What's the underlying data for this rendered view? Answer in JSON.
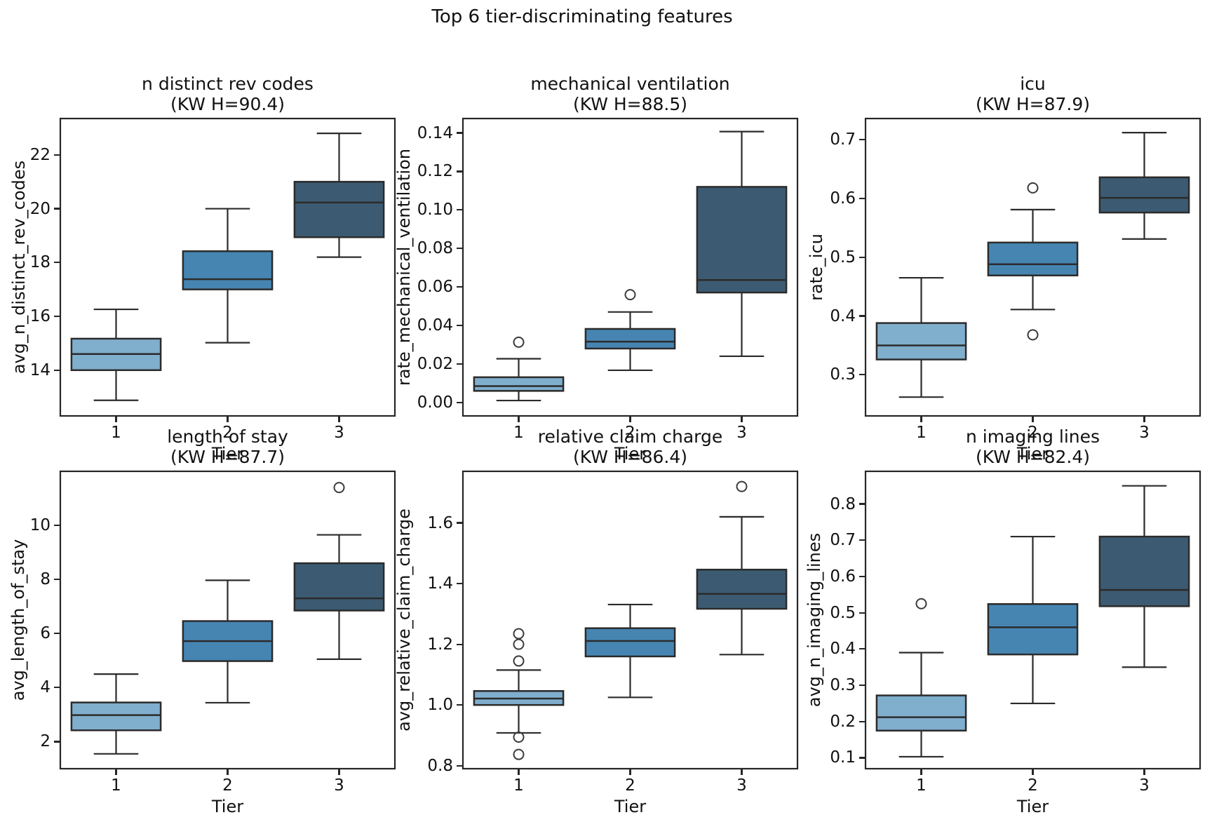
{
  "suptitle": "Top 6 tier-discriminating features",
  "palette": {
    "tier_fills": [
      "#80AECD",
      "#4685B2",
      "#3C5B72"
    ],
    "box_edge": "#2B2B2B",
    "spine": "#262626",
    "text": "#111111",
    "background": "#FFFFFF"
  },
  "axes_shared": {
    "xlabel": "Tier",
    "x_tick_labels": [
      "1",
      "2",
      "3"
    ]
  },
  "chart_data": [
    {
      "type": "box",
      "title": "n distinct rev codes",
      "subtitle": "(KW H=90.4)",
      "kw_h": 90.4,
      "ylabel": "avg_n_distinct_rev_codes",
      "xlabel": "Tier",
      "categories": [
        "1",
        "2",
        "3"
      ],
      "y_tick_values": [
        14,
        16,
        18,
        20,
        22
      ],
      "y_tick_labels": [
        "14",
        "16",
        "18",
        "20",
        "22"
      ],
      "ylim": [
        12.3,
        23.35
      ],
      "grid": false,
      "boxes": [
        {
          "category": "1",
          "whisker_low": 12.88,
          "q1": 14.0,
          "median": 14.6,
          "q3": 15.17,
          "whisker_high": 16.26,
          "outliers": []
        },
        {
          "category": "2",
          "whisker_low": 15.02,
          "q1": 17.0,
          "median": 17.38,
          "q3": 18.42,
          "whisker_high": 20.0,
          "outliers": []
        },
        {
          "category": "3",
          "whisker_low": 18.2,
          "q1": 18.94,
          "median": 20.23,
          "q3": 21.0,
          "whisker_high": 22.8,
          "outliers": []
        }
      ]
    },
    {
      "type": "box",
      "title": "mechanical ventilation",
      "subtitle": "(KW H=88.5)",
      "kw_h": 88.5,
      "ylabel": "rate_mechanical_ventilation",
      "xlabel": "Tier",
      "categories": [
        "1",
        "2",
        "3"
      ],
      "y_tick_values": [
        0.0,
        0.02,
        0.04,
        0.06,
        0.08,
        0.1,
        0.12,
        0.14
      ],
      "y_tick_labels": [
        "0.00",
        "0.02",
        "0.04",
        "0.06",
        "0.08",
        "0.10",
        "0.12",
        "0.14"
      ],
      "ylim": [
        -0.007,
        0.1475
      ],
      "grid": false,
      "boxes": [
        {
          "category": "1",
          "whisker_low": 0.001,
          "q1": 0.006,
          "median": 0.0085,
          "q3": 0.0131,
          "whisker_high": 0.0227,
          "outliers": [
            0.0313
          ]
        },
        {
          "category": "2",
          "whisker_low": 0.0167,
          "q1": 0.028,
          "median": 0.0316,
          "q3": 0.0382,
          "whisker_high": 0.047,
          "outliers": [
            0.056
          ]
        },
        {
          "category": "3",
          "whisker_low": 0.024,
          "q1": 0.0571,
          "median": 0.0636,
          "q3": 0.112,
          "whisker_high": 0.1407,
          "outliers": []
        }
      ]
    },
    {
      "type": "box",
      "title": "icu",
      "subtitle": "(KW H=87.9)",
      "kw_h": 87.9,
      "ylabel": "rate_icu",
      "xlabel": "Tier",
      "categories": [
        "1",
        "2",
        "3"
      ],
      "y_tick_values": [
        0.3,
        0.4,
        0.5,
        0.6,
        0.7
      ],
      "y_tick_labels": [
        "0.3",
        "0.4",
        "0.5",
        "0.6",
        "0.7"
      ],
      "ylim": [
        0.23,
        0.736
      ],
      "grid": false,
      "boxes": [
        {
          "category": "1",
          "whisker_low": 0.262,
          "q1": 0.326,
          "median": 0.35,
          "q3": 0.388,
          "whisker_high": 0.465,
          "outliers": []
        },
        {
          "category": "2",
          "whisker_low": 0.411,
          "q1": 0.469,
          "median": 0.488,
          "q3": 0.525,
          "whisker_high": 0.581,
          "outliers": [
            0.618,
            0.368
          ]
        },
        {
          "category": "3",
          "whisker_low": 0.531,
          "q1": 0.576,
          "median": 0.601,
          "q3": 0.636,
          "whisker_high": 0.712,
          "outliers": []
        }
      ]
    },
    {
      "type": "box",
      "title": "length of stay",
      "subtitle": "(KW H=87.7)",
      "kw_h": 87.7,
      "ylabel": "avg_length_of_stay",
      "xlabel": "Tier",
      "categories": [
        "1",
        "2",
        "3"
      ],
      "y_tick_values": [
        2,
        4,
        6,
        8,
        10
      ],
      "y_tick_labels": [
        "2",
        "4",
        "6",
        "8",
        "10"
      ],
      "ylim": [
        1.0,
        12.0
      ],
      "grid": false,
      "boxes": [
        {
          "category": "1",
          "whisker_low": 1.55,
          "q1": 2.42,
          "median": 2.98,
          "q3": 3.45,
          "whisker_high": 4.5,
          "outliers": []
        },
        {
          "category": "2",
          "whisker_low": 3.44,
          "q1": 4.98,
          "median": 5.72,
          "q3": 6.46,
          "whisker_high": 7.97,
          "outliers": []
        },
        {
          "category": "3",
          "whisker_low": 5.05,
          "q1": 6.85,
          "median": 7.3,
          "q3": 8.6,
          "whisker_high": 9.65,
          "outliers": [
            11.4
          ]
        }
      ]
    },
    {
      "type": "box",
      "title": "relative claim charge",
      "subtitle": "(KW H=86.4)",
      "kw_h": 86.4,
      "ylabel": "avg_relative_claim_charge",
      "xlabel": "Tier",
      "categories": [
        "1",
        "2",
        "3"
      ],
      "y_tick_values": [
        0.8,
        1.0,
        1.2,
        1.4,
        1.6
      ],
      "y_tick_labels": [
        "0.8",
        "1.0",
        "1.2",
        "1.4",
        "1.6"
      ],
      "ylim": [
        0.79,
        1.77
      ],
      "grid": false,
      "boxes": [
        {
          "category": "1",
          "whisker_low": 0.908,
          "q1": 1.0,
          "median": 1.021,
          "q3": 1.046,
          "whisker_high": 1.115,
          "outliers": [
            1.235,
            1.2,
            1.145,
            0.894,
            0.837
          ]
        },
        {
          "category": "2",
          "whisker_low": 1.025,
          "q1": 1.16,
          "median": 1.211,
          "q3": 1.253,
          "whisker_high": 1.331,
          "outliers": []
        },
        {
          "category": "3",
          "whisker_low": 1.166,
          "q1": 1.317,
          "median": 1.366,
          "q3": 1.446,
          "whisker_high": 1.62,
          "outliers": [
            1.72
          ]
        }
      ]
    },
    {
      "type": "box",
      "title": "n imaging lines",
      "subtitle": "(KW H=82.4)",
      "kw_h": 82.4,
      "ylabel": "avg_n_imaging_lines",
      "xlabel": "Tier",
      "categories": [
        "1",
        "2",
        "3"
      ],
      "y_tick_values": [
        0.1,
        0.2,
        0.3,
        0.4,
        0.5,
        0.6,
        0.7,
        0.8
      ],
      "y_tick_labels": [
        "0.1",
        "0.2",
        "0.3",
        "0.4",
        "0.5",
        "0.6",
        "0.7",
        "0.8"
      ],
      "ylim": [
        0.07,
        0.89
      ],
      "grid": false,
      "boxes": [
        {
          "category": "1",
          "whisker_low": 0.103,
          "q1": 0.175,
          "median": 0.212,
          "q3": 0.272,
          "whisker_high": 0.39,
          "outliers": [
            0.525
          ]
        },
        {
          "category": "2",
          "whisker_low": 0.25,
          "q1": 0.385,
          "median": 0.46,
          "q3": 0.524,
          "whisker_high": 0.71,
          "outliers": []
        },
        {
          "category": "3",
          "whisker_low": 0.35,
          "q1": 0.518,
          "median": 0.563,
          "q3": 0.71,
          "whisker_high": 0.85,
          "outliers": []
        }
      ]
    }
  ]
}
